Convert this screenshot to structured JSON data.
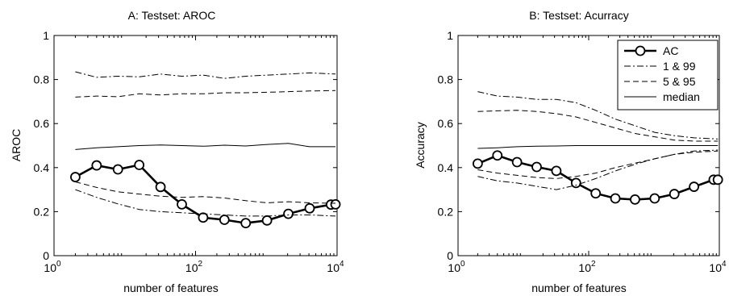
{
  "chart_data": [
    {
      "type": "line",
      "title": "A: Testset: AROC",
      "xlabel": "number of features",
      "ylabel": "AROC",
      "xscale": "log",
      "xlim": [
        1,
        10000
      ],
      "ylim": [
        0,
        1
      ],
      "xticks": [
        {
          "value": 1,
          "base": "10",
          "exp": "0"
        },
        {
          "value": 100,
          "base": "10",
          "exp": "2"
        },
        {
          "value": 10000,
          "base": "10",
          "exp": "4"
        }
      ],
      "yticks": [
        "0",
        "0.2",
        "0.4",
        "0.6",
        "0.8",
        "1"
      ],
      "grid": false,
      "series": [
        {
          "name": "AC",
          "style": "thick-circle",
          "x": [
            2,
            4,
            8,
            16,
            32,
            64,
            128,
            256,
            512,
            1024,
            2048,
            4096,
            8192,
            9500
          ],
          "y": [
            0.357,
            0.41,
            0.392,
            0.412,
            0.312,
            0.233,
            0.173,
            0.163,
            0.148,
            0.16,
            0.19,
            0.215,
            0.232,
            0.233
          ]
        },
        {
          "name": "1 & 99 (upper)",
          "style": "dashdot",
          "x": [
            2,
            4,
            8,
            16,
            32,
            64,
            128,
            256,
            512,
            1024,
            2048,
            4096,
            9500
          ],
          "y": [
            0.835,
            0.81,
            0.815,
            0.812,
            0.825,
            0.815,
            0.82,
            0.805,
            0.815,
            0.82,
            0.825,
            0.83,
            0.825
          ]
        },
        {
          "name": "5 & 95 (upper)",
          "style": "dashed",
          "x": [
            2,
            4,
            8,
            16,
            32,
            64,
            128,
            256,
            512,
            1024,
            2048,
            4096,
            9500
          ],
          "y": [
            0.72,
            0.725,
            0.722,
            0.735,
            0.73,
            0.735,
            0.735,
            0.74,
            0.74,
            0.742,
            0.745,
            0.748,
            0.75
          ]
        },
        {
          "name": "median",
          "style": "solid",
          "x": [
            2,
            4,
            8,
            16,
            32,
            64,
            128,
            256,
            512,
            1024,
            2048,
            4096,
            9500
          ],
          "y": [
            0.482,
            0.49,
            0.495,
            0.5,
            0.503,
            0.5,
            0.497,
            0.502,
            0.498,
            0.505,
            0.51,
            0.495,
            0.495
          ]
        },
        {
          "name": "5 & 95 (lower)",
          "style": "dashed",
          "x": [
            2,
            4,
            8,
            16,
            32,
            64,
            128,
            256,
            512,
            1024,
            2048,
            4096,
            9500
          ],
          "y": [
            0.335,
            0.31,
            0.29,
            0.28,
            0.27,
            0.265,
            0.268,
            0.262,
            0.25,
            0.24,
            0.245,
            0.24,
            0.238
          ]
        },
        {
          "name": "1 & 99 (lower)",
          "style": "dashdot",
          "x": [
            2,
            4,
            8,
            16,
            32,
            64,
            128,
            256,
            512,
            1024,
            2048,
            4096,
            9500
          ],
          "y": [
            0.3,
            0.265,
            0.235,
            0.21,
            0.2,
            0.195,
            0.19,
            0.185,
            0.18,
            0.18,
            0.185,
            0.185,
            0.18
          ]
        }
      ]
    },
    {
      "type": "line",
      "title": "B: Testset: Acurracy",
      "xlabel": "number of features",
      "ylabel": "Accuracy",
      "xscale": "log",
      "xlim": [
        1,
        10000
      ],
      "ylim": [
        0,
        1
      ],
      "xticks": [
        {
          "value": 1,
          "base": "10",
          "exp": "0"
        },
        {
          "value": 100,
          "base": "10",
          "exp": "2"
        },
        {
          "value": 10000,
          "base": "10",
          "exp": "4"
        }
      ],
      "yticks": [
        "0",
        "0.2",
        "0.4",
        "0.6",
        "0.8",
        "1"
      ],
      "grid": false,
      "legend": {
        "placement": "top-right",
        "entries": [
          {
            "label": "AC",
            "style": "thick-circle"
          },
          {
            "label": "1 & 99",
            "style": "dashdot"
          },
          {
            "label": "5 & 95",
            "style": "dashed"
          },
          {
            "label": "median",
            "style": "solid"
          }
        ]
      },
      "series": [
        {
          "name": "AC",
          "style": "thick-circle",
          "x": [
            2,
            4,
            8,
            16,
            32,
            64,
            128,
            256,
            512,
            1024,
            2048,
            4096,
            8192,
            9500
          ],
          "y": [
            0.418,
            0.455,
            0.425,
            0.403,
            0.385,
            0.33,
            0.283,
            0.26,
            0.255,
            0.26,
            0.28,
            0.313,
            0.345,
            0.345
          ]
        },
        {
          "name": "1 & 99 (upper)",
          "style": "dashdot",
          "x": [
            2,
            4,
            8,
            16,
            32,
            64,
            128,
            256,
            512,
            1024,
            2048,
            4096,
            9500
          ],
          "y": [
            0.745,
            0.725,
            0.72,
            0.71,
            0.71,
            0.695,
            0.66,
            0.62,
            0.59,
            0.56,
            0.545,
            0.535,
            0.53
          ]
        },
        {
          "name": "5 & 95 (upper)",
          "style": "dashed",
          "x": [
            2,
            4,
            8,
            16,
            32,
            64,
            128,
            256,
            512,
            1024,
            2048,
            4096,
            9500
          ],
          "y": [
            0.655,
            0.658,
            0.66,
            0.655,
            0.645,
            0.63,
            0.605,
            0.58,
            0.555,
            0.54,
            0.525,
            0.52,
            0.52
          ]
        },
        {
          "name": "median",
          "style": "solid",
          "x": [
            2,
            4,
            8,
            16,
            32,
            64,
            128,
            256,
            512,
            1024,
            2048,
            4096,
            9500
          ],
          "y": [
            0.487,
            0.49,
            0.495,
            0.497,
            0.498,
            0.5,
            0.5,
            0.5,
            0.5,
            0.5,
            0.5,
            0.5,
            0.5
          ]
        },
        {
          "name": "5 & 95 (lower)",
          "style": "dashed",
          "x": [
            2,
            4,
            8,
            16,
            32,
            64,
            128,
            256,
            512,
            1024,
            2048,
            4096,
            9500
          ],
          "y": [
            0.39,
            0.375,
            0.365,
            0.355,
            0.35,
            0.36,
            0.375,
            0.4,
            0.42,
            0.44,
            0.46,
            0.47,
            0.475
          ]
        },
        {
          "name": "1 & 99 (lower)",
          "style": "dashdot",
          "x": [
            2,
            4,
            8,
            16,
            32,
            64,
            128,
            256,
            512,
            1024,
            2048,
            4096,
            9500
          ],
          "y": [
            0.36,
            0.34,
            0.33,
            0.315,
            0.3,
            0.32,
            0.35,
            0.385,
            0.415,
            0.44,
            0.46,
            0.475,
            0.48
          ]
        }
      ]
    }
  ]
}
